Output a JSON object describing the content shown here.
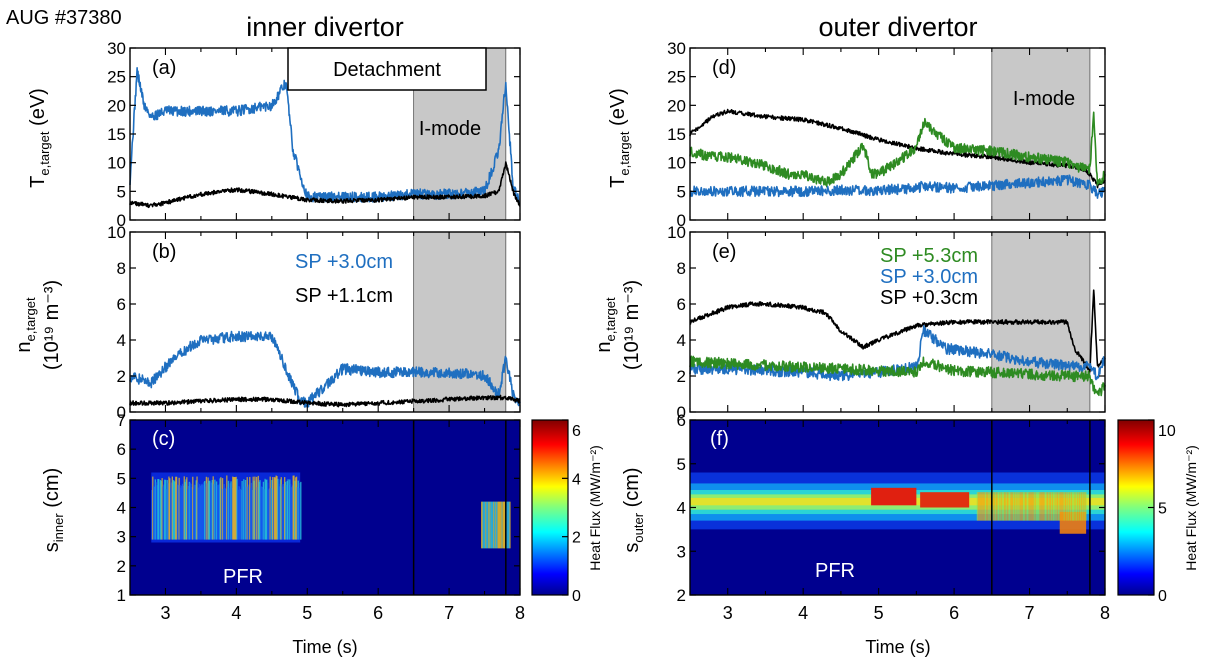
{
  "figure": {
    "shot_label": "AUG #37380",
    "inner_title": "inner divertor",
    "outer_title": "outer divertor",
    "time_label": "Time (s)",
    "detachment_label": "Detachment",
    "imode_label": "I-mode",
    "pfr_label": "PFR",
    "colorbar_label": "Heat Flux (MW/m⁻²)",
    "te_ylabel": "T",
    "te_sub": "e,target",
    "te_unit": " (eV)",
    "ne_ylabel": "n",
    "ne_sub": "e,target",
    "ne_unit": "(10¹⁹ m⁻³)",
    "s_ylabel_base": "s",
    "s_inner_sub": "inner",
    "s_outer_sub": "outer",
    "s_unit": " (cm)"
  },
  "colors": {
    "black": "#000000",
    "blue": "#1f6fc0",
    "green": "#2e8b22",
    "shade": "#c8c8c8"
  },
  "chart_data": [
    {
      "id": "a",
      "type": "line",
      "panel_label": "(a)",
      "xlim": [
        2.5,
        8
      ],
      "ylim": [
        0,
        30
      ],
      "yticks": [
        0,
        5,
        10,
        15,
        20,
        25,
        30
      ],
      "shaded_x": [
        6.5,
        7.8
      ],
      "series": [
        {
          "color": "blue",
          "x": [
            2.5,
            2.6,
            2.7,
            2.8,
            3.0,
            3.5,
            4.0,
            4.5,
            4.7,
            4.8,
            5.0,
            5.5,
            6.0,
            6.5,
            7.0,
            7.5,
            7.7,
            7.8,
            7.9,
            8.0
          ],
          "y": [
            7,
            26,
            20,
            18,
            19,
            19,
            19,
            20,
            24,
            12,
            4,
            4,
            4,
            4.5,
            4.5,
            5,
            12,
            24,
            6,
            3
          ]
        },
        {
          "color": "black",
          "x": [
            2.5,
            2.8,
            3.0,
            3.5,
            4.0,
            4.5,
            5.0,
            5.5,
            6.0,
            6.5,
            7.0,
            7.5,
            7.7,
            7.8,
            7.9,
            8.0
          ],
          "y": [
            3,
            2.5,
            3,
            4.5,
            5.3,
            4.5,
            3.5,
            3.3,
            3.5,
            4,
            4,
            4.2,
            5,
            10,
            5,
            2.5
          ]
        }
      ]
    },
    {
      "id": "b",
      "type": "line",
      "panel_label": "(b)",
      "xlim": [
        2.5,
        8
      ],
      "ylim": [
        0,
        10
      ],
      "yticks": [
        0,
        2,
        4,
        6,
        8,
        10
      ],
      "shaded_x": [
        6.5,
        7.8
      ],
      "legend": [
        "SP +3.0cm",
        "SP +1.1cm"
      ],
      "series": [
        {
          "color": "blue",
          "name": "SP +3.0cm",
          "x": [
            2.5,
            2.8,
            3.0,
            3.3,
            3.5,
            4.0,
            4.5,
            4.8,
            4.9,
            5.0,
            5.5,
            6.0,
            6.5,
            7.0,
            7.5,
            7.7,
            7.8,
            7.9,
            8.0
          ],
          "y": [
            2,
            1.6,
            2.5,
            3.5,
            4,
            4.2,
            4.2,
            1.5,
            0.6,
            0.5,
            2.4,
            2.2,
            2.2,
            2.2,
            2.0,
            1.0,
            3,
            1.0,
            0.5
          ]
        },
        {
          "color": "black",
          "name": "SP +1.1cm",
          "x": [
            2.5,
            3.0,
            3.5,
            4.0,
            4.5,
            5.0,
            5.5,
            6.0,
            6.5,
            7.0,
            7.5,
            7.8,
            8.0
          ],
          "y": [
            0.5,
            0.5,
            0.6,
            0.7,
            0.7,
            0.5,
            0.4,
            0.5,
            0.6,
            0.7,
            0.8,
            0.8,
            0.6
          ]
        }
      ]
    },
    {
      "id": "c",
      "type": "heatmap",
      "panel_label": "(c)",
      "xlim": [
        2.5,
        8
      ],
      "ylim": [
        1,
        7
      ],
      "yticks": [
        1,
        2,
        3,
        4,
        5,
        6,
        7
      ],
      "xticks": [
        3,
        4,
        5,
        6,
        7,
        8
      ],
      "vlines": [
        6.5,
        7.8
      ],
      "colorbar": {
        "range": [
          0,
          6
        ],
        "ticks": [
          0,
          2,
          4,
          6
        ]
      }
    },
    {
      "id": "d",
      "type": "line",
      "panel_label": "(d)",
      "xlim": [
        2.5,
        8
      ],
      "ylim": [
        0,
        30
      ],
      "yticks": [
        0,
        5,
        10,
        15,
        20,
        25,
        30
      ],
      "shaded_x": [
        6.5,
        7.8
      ],
      "series": [
        {
          "color": "black",
          "x": [
            2.5,
            2.8,
            3.0,
            3.5,
            4.0,
            4.5,
            5.0,
            5.5,
            6.0,
            6.5,
            7.0,
            7.5,
            7.7,
            7.8,
            7.9,
            8.0
          ],
          "y": [
            15,
            18,
            19,
            18,
            17.5,
            16,
            14,
            12.5,
            11.5,
            11,
            10,
            9.5,
            9,
            8,
            6,
            7
          ]
        },
        {
          "color": "green",
          "x": [
            2.5,
            2.8,
            3.0,
            3.5,
            3.8,
            4.0,
            4.3,
            4.5,
            4.8,
            4.9,
            5.0,
            5.5,
            5.6,
            6.0,
            6.5,
            7.0,
            7.5,
            7.7,
            7.8,
            7.85,
            7.9,
            8.0
          ],
          "y": [
            12,
            11,
            11,
            9.5,
            8,
            8,
            6.5,
            8,
            13,
            8,
            8,
            12.5,
            17,
            12.5,
            12,
            11,
            10,
            9,
            9,
            19,
            6,
            8
          ]
        },
        {
          "color": "blue",
          "x": [
            2.5,
            3.0,
            3.5,
            4.0,
            4.5,
            5.0,
            5.5,
            5.6,
            6.0,
            6.5,
            7.0,
            7.5,
            7.8,
            7.9,
            8.0
          ],
          "y": [
            5,
            5,
            5,
            5,
            5.2,
            5.2,
            5.5,
            6,
            5.5,
            6,
            6.5,
            7,
            6,
            4.5,
            5
          ]
        }
      ]
    },
    {
      "id": "e",
      "type": "line",
      "panel_label": "(e)",
      "xlim": [
        2.5,
        8
      ],
      "ylim": [
        0,
        10
      ],
      "yticks": [
        0,
        2,
        4,
        6,
        8,
        10
      ],
      "shaded_x": [
        6.5,
        7.8
      ],
      "legend": [
        "SP +5.3cm",
        "SP +3.0cm",
        "SP +0.3cm"
      ],
      "series": [
        {
          "color": "black",
          "name": "SP +0.3cm",
          "x": [
            2.5,
            3.0,
            3.3,
            3.5,
            4.0,
            4.3,
            4.5,
            4.8,
            5.0,
            5.5,
            6.0,
            6.5,
            7.0,
            7.5,
            7.6,
            7.8,
            7.85,
            7.9,
            8.0
          ],
          "y": [
            5,
            5.8,
            6,
            6,
            5.8,
            5.5,
            4.5,
            3.6,
            4,
            4.8,
            5,
            5,
            5,
            5,
            3.5,
            2.3,
            6.8,
            2.5,
            3
          ]
        },
        {
          "color": "blue",
          "name": "SP +3.0cm",
          "x": [
            2.5,
            3.0,
            3.5,
            4.0,
            4.5,
            5.0,
            5.5,
            5.6,
            5.9,
            6.0,
            6.5,
            7.0,
            7.5,
            7.8,
            7.9,
            8.0
          ],
          "y": [
            2.4,
            2.4,
            2.3,
            2.2,
            2.0,
            2.2,
            2.5,
            4.5,
            3.5,
            3.5,
            3.2,
            2.8,
            2.6,
            2.5,
            2.0,
            3.0
          ]
        },
        {
          "color": "green",
          "name": "SP +5.3cm",
          "x": [
            2.5,
            3.0,
            3.5,
            4.0,
            4.5,
            5.0,
            5.5,
            5.6,
            6.0,
            6.5,
            7.0,
            7.5,
            7.8,
            7.9,
            8.0
          ],
          "y": [
            2.8,
            2.7,
            2.6,
            2.5,
            2.4,
            2.3,
            2.2,
            2.8,
            2.3,
            2.2,
            2.1,
            2.0,
            2.0,
            0.8,
            1.5
          ]
        }
      ]
    },
    {
      "id": "f",
      "type": "heatmap",
      "panel_label": "(f)",
      "xlim": [
        2.5,
        8
      ],
      "ylim": [
        2,
        6
      ],
      "yticks": [
        2,
        3,
        4,
        5,
        6
      ],
      "xticks": [
        3,
        4,
        5,
        6,
        7,
        8
      ],
      "vlines": [
        6.5,
        7.8
      ],
      "colorbar": {
        "range": [
          0,
          10
        ],
        "ticks": [
          0,
          5,
          10
        ]
      }
    }
  ]
}
